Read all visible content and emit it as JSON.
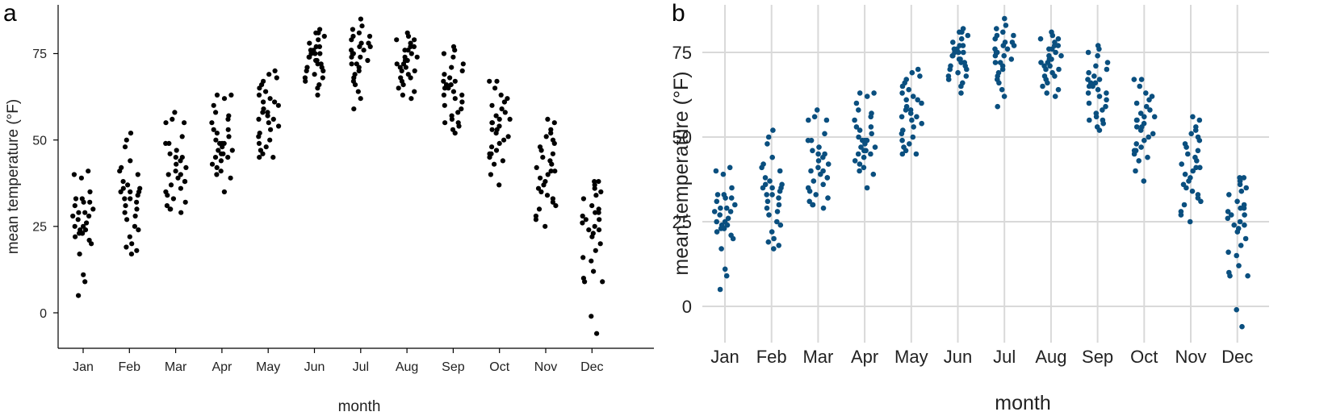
{
  "panel_labels": [
    "a",
    "b"
  ],
  "colors": {
    "panel_a_points": "#000000",
    "panel_b_points": "#0a4f7f",
    "panel_b_grid": "#d9d9d9"
  },
  "chart_data": [
    {
      "type": "scatter",
      "panel": "a",
      "style": "jittered strip chart, axes lines, no grid",
      "grid": false,
      "xlabel": "month",
      "ylabel": "mean temperature (°F)",
      "categories": [
        "Jan",
        "Feb",
        "Mar",
        "Apr",
        "May",
        "Jun",
        "Jul",
        "Aug",
        "Sep",
        "Oct",
        "Nov",
        "Dec"
      ],
      "yticks": [
        0,
        25,
        50,
        75
      ],
      "ylim": [
        -10,
        88
      ],
      "values": [
        [
          41,
          40,
          39,
          35,
          33,
          32,
          31,
          30,
          29,
          28,
          28,
          27,
          26,
          25,
          25,
          24,
          24,
          23,
          23,
          22,
          21,
          20,
          17,
          11,
          9,
          5,
          29,
          32,
          33,
          23
        ],
        [
          52,
          50,
          48,
          44,
          42,
          41,
          40,
          38,
          37,
          36,
          36,
          35,
          35,
          34,
          33,
          33,
          32,
          31,
          30,
          29,
          28,
          27,
          25,
          24,
          22,
          20,
          19,
          18,
          17,
          35
        ],
        [
          58,
          56,
          55,
          55,
          51,
          49,
          47,
          46,
          45,
          45,
          44,
          42,
          41,
          40,
          40,
          39,
          38,
          37,
          36,
          35,
          34,
          33,
          32,
          31,
          30,
          30,
          29,
          43,
          38,
          49
        ],
        [
          63,
          63,
          62,
          60,
          58,
          57,
          56,
          55,
          53,
          52,
          51,
          50,
          49,
          49,
          48,
          47,
          47,
          46,
          45,
          45,
          44,
          43,
          42,
          41,
          40,
          39,
          35,
          49,
          53,
          46
        ],
        [
          70,
          69,
          68,
          67,
          66,
          65,
          64,
          63,
          62,
          61,
          60,
          59,
          58,
          57,
          56,
          55,
          54,
          53,
          52,
          51,
          50,
          49,
          48,
          47,
          46,
          45,
          45,
          58,
          61,
          56
        ],
        [
          82,
          81,
          81,
          80,
          79,
          78,
          77,
          77,
          76,
          75,
          75,
          74,
          74,
          73,
          73,
          72,
          72,
          71,
          71,
          70,
          70,
          69,
          68,
          68,
          67,
          66,
          65,
          63,
          75,
          76
        ],
        [
          85,
          83,
          82,
          81,
          80,
          80,
          79,
          78,
          78,
          77,
          76,
          76,
          75,
          75,
          74,
          74,
          73,
          72,
          72,
          71,
          70,
          69,
          68,
          67,
          66,
          64,
          62,
          59,
          75,
          77
        ],
        [
          81,
          80,
          79,
          79,
          78,
          77,
          77,
          76,
          76,
          75,
          74,
          74,
          73,
          73,
          72,
          72,
          71,
          71,
          70,
          70,
          69,
          68,
          68,
          67,
          66,
          65,
          64,
          63,
          62,
          73
        ],
        [
          77,
          76,
          75,
          74,
          72,
          71,
          70,
          69,
          68,
          67,
          67,
          66,
          65,
          65,
          64,
          63,
          62,
          61,
          60,
          59,
          58,
          57,
          56,
          55,
          55,
          54,
          53,
          52,
          63,
          66
        ],
        [
          67,
          67,
          65,
          63,
          62,
          61,
          60,
          59,
          58,
          57,
          56,
          55,
          55,
          54,
          53,
          52,
          51,
          50,
          49,
          48,
          47,
          46,
          46,
          45,
          44,
          43,
          40,
          37,
          56,
          53
        ],
        [
          56,
          55,
          53,
          52,
          51,
          50,
          49,
          48,
          47,
          46,
          45,
          43,
          42,
          41,
          40,
          39,
          38,
          37,
          36,
          35,
          34,
          33,
          32,
          31,
          30,
          28,
          27,
          25,
          44,
          41
        ],
        [
          38,
          38,
          37,
          36,
          35,
          34,
          33,
          31,
          30,
          29,
          29,
          28,
          27,
          26,
          25,
          24,
          23,
          22,
          20,
          18,
          16,
          15,
          12,
          10,
          9,
          9,
          -1,
          -6,
          27,
          24
        ]
      ]
    },
    {
      "type": "scatter",
      "panel": "b",
      "style": "jittered strip chart, light grey grid, no axis lines",
      "grid": true,
      "xlabel": "month",
      "ylabel": "mean temperature (°F)",
      "categories": [
        "Jan",
        "Feb",
        "Mar",
        "Apr",
        "May",
        "Jun",
        "Jul",
        "Aug",
        "Sep",
        "Oct",
        "Nov",
        "Dec"
      ],
      "yticks": [
        0,
        25,
        50,
        75
      ],
      "ylim": [
        -10,
        88
      ],
      "values": [
        [
          41,
          40,
          39,
          35,
          33,
          32,
          31,
          30,
          29,
          28,
          28,
          27,
          26,
          25,
          25,
          24,
          24,
          23,
          23,
          22,
          21,
          20,
          17,
          11,
          9,
          5,
          29,
          32,
          33,
          23
        ],
        [
          52,
          50,
          48,
          44,
          42,
          41,
          40,
          38,
          37,
          36,
          36,
          35,
          35,
          34,
          33,
          33,
          32,
          31,
          30,
          29,
          28,
          27,
          25,
          24,
          22,
          20,
          19,
          18,
          17,
          35
        ],
        [
          58,
          56,
          55,
          55,
          51,
          49,
          47,
          46,
          45,
          45,
          44,
          42,
          41,
          40,
          40,
          39,
          38,
          37,
          36,
          35,
          34,
          33,
          32,
          31,
          30,
          30,
          29,
          43,
          38,
          49
        ],
        [
          63,
          63,
          62,
          60,
          58,
          57,
          56,
          55,
          53,
          52,
          51,
          50,
          49,
          49,
          48,
          47,
          47,
          46,
          45,
          45,
          44,
          43,
          42,
          41,
          40,
          39,
          35,
          49,
          53,
          46
        ],
        [
          70,
          69,
          68,
          67,
          66,
          65,
          64,
          63,
          62,
          61,
          60,
          59,
          58,
          57,
          56,
          55,
          54,
          53,
          52,
          51,
          50,
          49,
          48,
          47,
          46,
          45,
          45,
          58,
          61,
          56
        ],
        [
          82,
          81,
          81,
          80,
          79,
          78,
          77,
          77,
          76,
          75,
          75,
          74,
          74,
          73,
          73,
          72,
          72,
          71,
          71,
          70,
          70,
          69,
          68,
          68,
          67,
          66,
          65,
          63,
          75,
          76
        ],
        [
          85,
          83,
          82,
          81,
          80,
          80,
          79,
          78,
          78,
          77,
          76,
          76,
          75,
          75,
          74,
          74,
          73,
          72,
          72,
          71,
          70,
          69,
          68,
          67,
          66,
          64,
          62,
          59,
          75,
          77
        ],
        [
          81,
          80,
          79,
          79,
          78,
          77,
          77,
          76,
          76,
          75,
          74,
          74,
          73,
          73,
          72,
          72,
          71,
          71,
          70,
          70,
          69,
          68,
          68,
          67,
          66,
          65,
          64,
          63,
          62,
          73
        ],
        [
          77,
          76,
          75,
          74,
          72,
          71,
          70,
          69,
          68,
          67,
          67,
          66,
          65,
          65,
          64,
          63,
          62,
          61,
          60,
          59,
          58,
          57,
          56,
          55,
          55,
          54,
          53,
          52,
          63,
          66
        ],
        [
          67,
          67,
          65,
          63,
          62,
          61,
          60,
          59,
          58,
          57,
          56,
          55,
          55,
          54,
          53,
          52,
          51,
          50,
          49,
          48,
          47,
          46,
          46,
          45,
          44,
          43,
          40,
          37,
          56,
          53
        ],
        [
          56,
          55,
          53,
          52,
          51,
          50,
          49,
          48,
          47,
          46,
          45,
          43,
          42,
          41,
          40,
          39,
          38,
          37,
          36,
          35,
          34,
          33,
          32,
          31,
          30,
          28,
          27,
          25,
          44,
          41
        ],
        [
          38,
          38,
          37,
          36,
          35,
          34,
          33,
          31,
          30,
          29,
          29,
          28,
          27,
          26,
          25,
          24,
          23,
          22,
          20,
          18,
          16,
          15,
          12,
          10,
          9,
          9,
          -1,
          -6,
          27,
          24
        ]
      ]
    }
  ]
}
